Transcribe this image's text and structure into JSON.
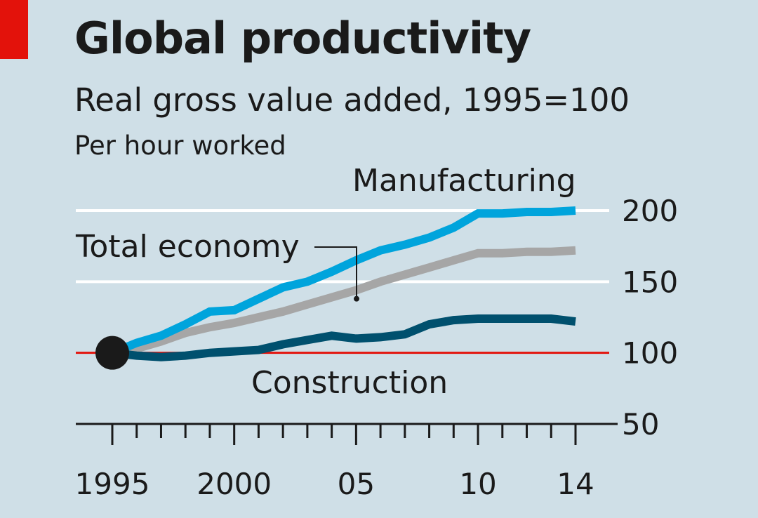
{
  "chart_data": {
    "type": "line",
    "title": "Global productivity",
    "subtitle": "Real gross value added, 1995=100",
    "unit_note": "Per hour worked",
    "x": [
      1995,
      1996,
      1997,
      1998,
      1999,
      2000,
      2001,
      2002,
      2003,
      2004,
      2005,
      2006,
      2007,
      2008,
      2009,
      2010,
      2011,
      2012,
      2013,
      2014
    ],
    "x_tick_labels": [
      {
        "x": 1995,
        "label": "1995"
      },
      {
        "x": 2000,
        "label": "2000"
      },
      {
        "x": 2005,
        "label": "05"
      },
      {
        "x": 2010,
        "label": "10"
      },
      {
        "x": 2014,
        "label": "14"
      }
    ],
    "y_ticks": [
      50,
      100,
      150,
      200
    ],
    "ylim": [
      50,
      200
    ],
    "baseline": 100,
    "series": [
      {
        "name": "Manufacturing",
        "color": "#00a4dc",
        "values": [
          100,
          107,
          112,
          120,
          129,
          130,
          138,
          146,
          150,
          157,
          165,
          172,
          176,
          181,
          188,
          198,
          198,
          199,
          199,
          200
        ]
      },
      {
        "name": "Total economy",
        "color": "#a6a6a6",
        "values": [
          100,
          103,
          108,
          114,
          118,
          121,
          125,
          129,
          134,
          139,
          144,
          150,
          155,
          160,
          165,
          170,
          170,
          171,
          171,
          172
        ]
      },
      {
        "name": "Construction",
        "color": "#00506e",
        "values": [
          100,
          98,
          97,
          98,
          100,
          101,
          102,
          106,
          109,
          112,
          110,
          111,
          113,
          120,
          123,
          124,
          124,
          124,
          124,
          122
        ]
      }
    ],
    "xlabel": "",
    "ylabel": ""
  },
  "colors": {
    "background": "#cfdfe7",
    "baseline": "#e3120b",
    "gridline": "#ffffff",
    "accent": "#e3120b"
  }
}
